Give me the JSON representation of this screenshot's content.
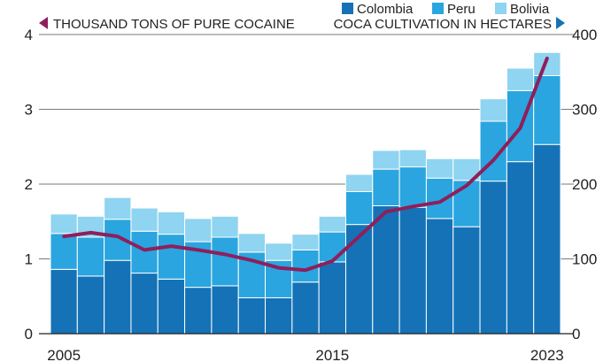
{
  "chart_data": {
    "type": "bar",
    "subtype": "stacked-bar-with-line",
    "title": "",
    "xlabel": "",
    "x_tick_labels": [
      "2005",
      "2015",
      "2023"
    ],
    "categories": [
      2005,
      2006,
      2007,
      2008,
      2009,
      2010,
      2011,
      2012,
      2013,
      2014,
      2015,
      2016,
      2017,
      2018,
      2019,
      2020,
      2021,
      2022,
      2023
    ],
    "left_axis": {
      "label": "THOUSAND TONS OF PURE COCAINE",
      "ylim": [
        0,
        4
      ],
      "ticks": [
        "0",
        "1",
        "2",
        "3",
        "4"
      ]
    },
    "right_axis": {
      "label": "COCA CULTIVATION IN HECTARES",
      "ylim": [
        0,
        400
      ],
      "ticks": [
        "0",
        "100",
        "200",
        "300",
        "400"
      ]
    },
    "bar_axis": "right",
    "line_axis": "left",
    "series": [
      {
        "name": "Colombia",
        "axis": "right",
        "color": "#1572b6",
        "values": [
          86,
          77,
          98,
          81,
          73,
          62,
          64,
          48,
          48,
          69,
          96,
          146,
          171,
          169,
          154,
          143,
          204,
          230,
          253
        ]
      },
      {
        "name": "Peru",
        "axis": "right",
        "color": "#2aa5df",
        "values": [
          48,
          52,
          55,
          56,
          60,
          61,
          65,
          61,
          50,
          43,
          40,
          44,
          49,
          54,
          54,
          62,
          80,
          95,
          92
        ]
      },
      {
        "name": "Bolivia",
        "axis": "right",
        "color": "#8fd4f0",
        "values": [
          26,
          28,
          29,
          31,
          30,
          31,
          28,
          25,
          23,
          21,
          21,
          23,
          25,
          23,
          26,
          29,
          30,
          30,
          31
        ]
      },
      {
        "name": "",
        "type": "line",
        "axis": "left",
        "color": "#8e1f5c",
        "values": [
          1.3,
          1.35,
          1.3,
          1.12,
          1.17,
          1.12,
          1.06,
          0.98,
          0.88,
          0.85,
          0.97,
          1.3,
          1.63,
          1.7,
          1.76,
          1.98,
          2.32,
          2.75,
          3.68
        ]
      }
    ],
    "legend": {
      "position": "top-right",
      "items": [
        "Colombia",
        "Peru",
        "Bolivia"
      ]
    },
    "grid": {
      "horizontal": true,
      "vertical": false,
      "color": "#7a7a7a"
    },
    "colors": {
      "left_arrow": "#8e1f5c",
      "right_arrow": "#1572b6"
    }
  }
}
